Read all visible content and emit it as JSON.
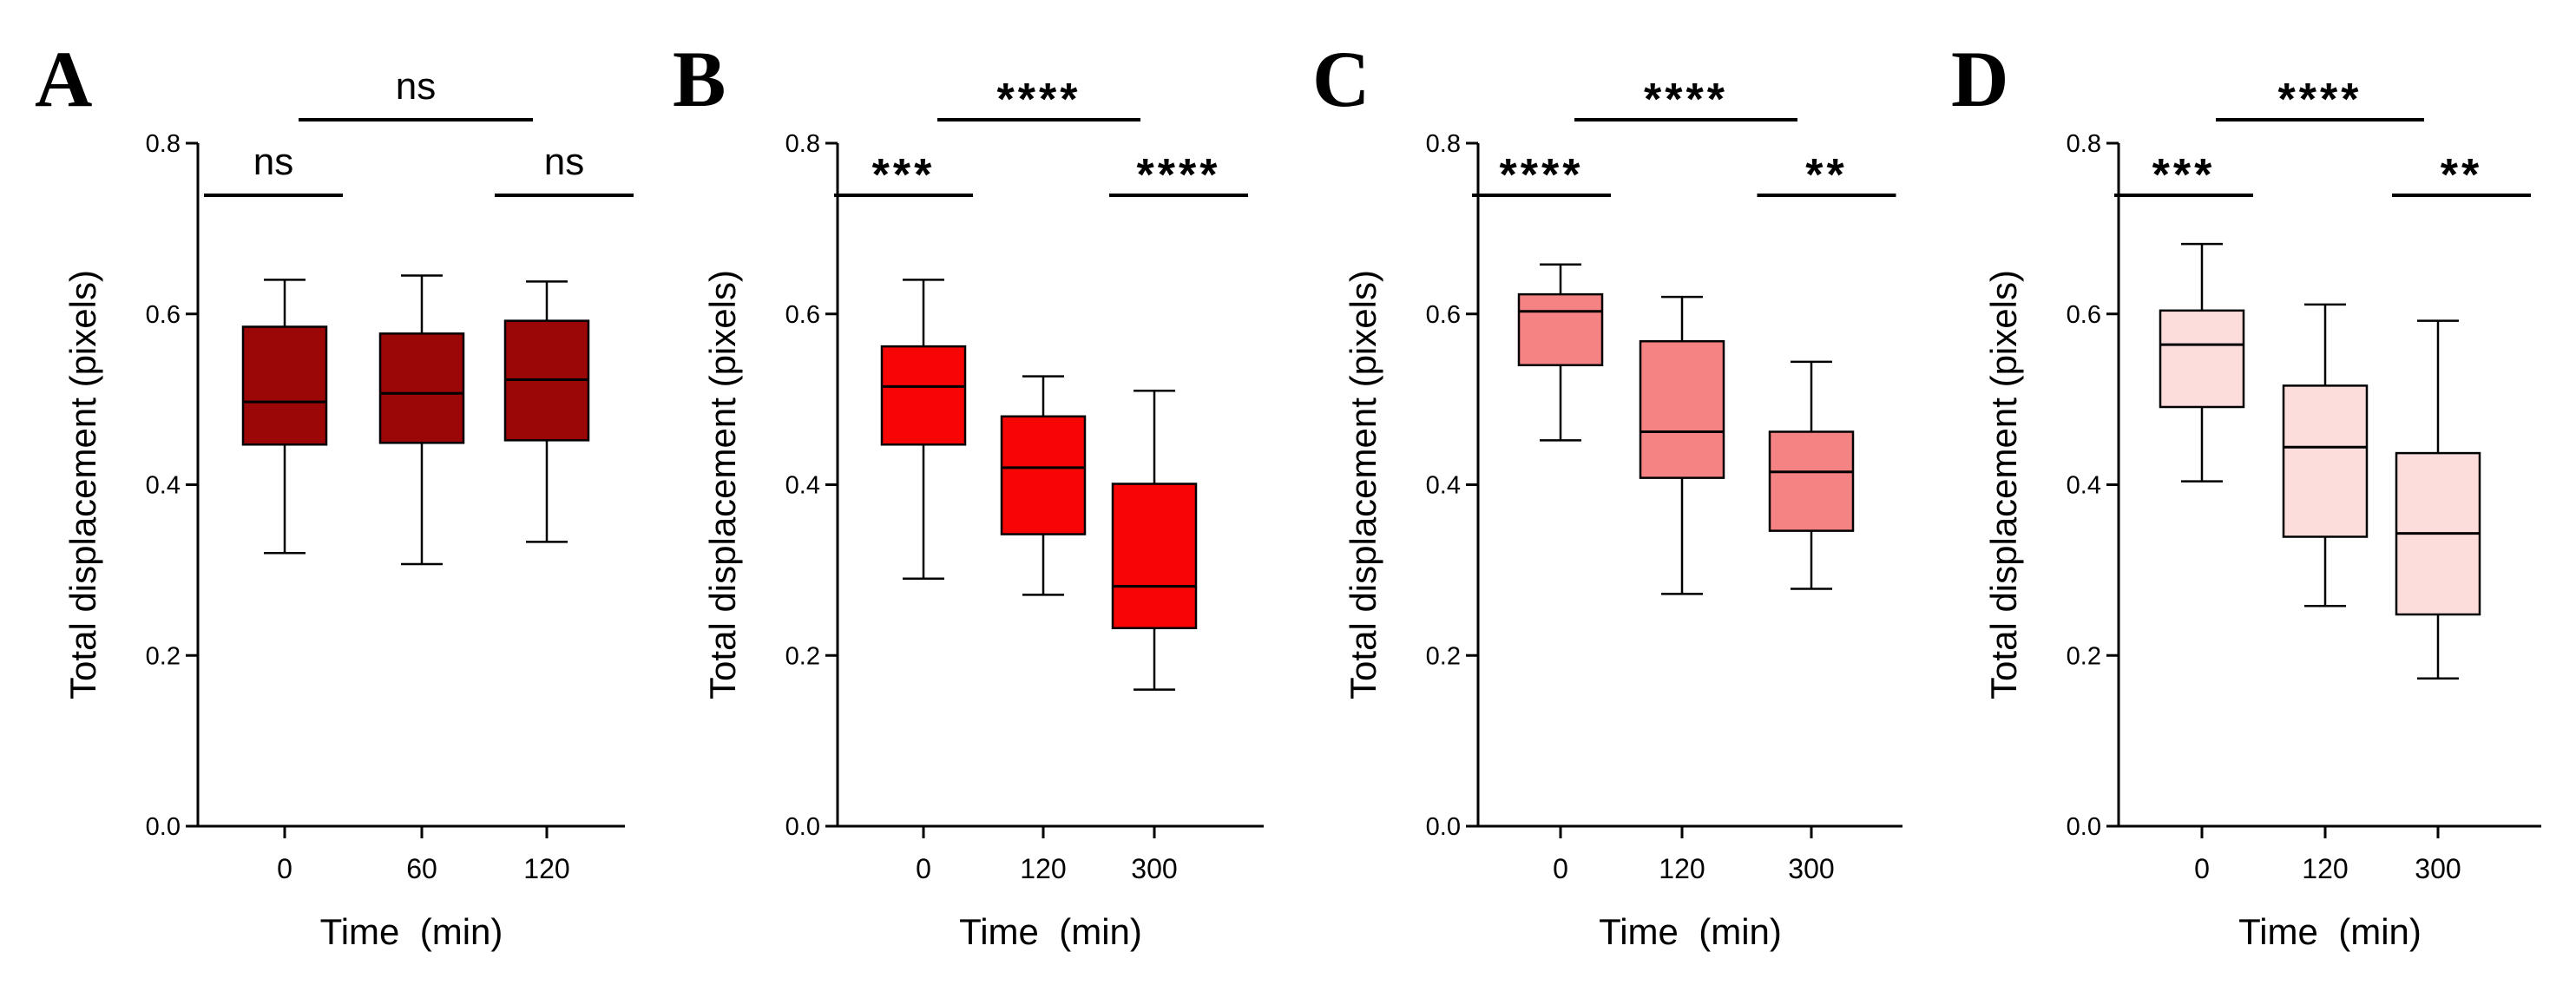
{
  "figure": {
    "colors": {
      "axis": "#000000",
      "background": "#ffffff"
    }
  },
  "chart_data": [
    {
      "panel": "A",
      "type": "box",
      "ylabel": "Total displacement (pixels)",
      "xlabel": "Time  (min)",
      "ylim": [
        0.0,
        0.8
      ],
      "yticks": [
        "0.0",
        "0.2",
        "0.4",
        "0.6",
        "0.8"
      ],
      "categories": [
        "0",
        "60",
        "120"
      ],
      "box_color": "#9b0606",
      "boxes": [
        {
          "min": 0.32,
          "q1": 0.447,
          "median": 0.497,
          "q3": 0.585,
          "max": 0.64
        },
        {
          "min": 0.307,
          "q1": 0.449,
          "median": 0.507,
          "q3": 0.577,
          "max": 0.645
        },
        {
          "min": 0.333,
          "q1": 0.452,
          "median": 0.523,
          "q3": 0.592,
          "max": 0.638
        }
      ],
      "significance": [
        {
          "from": 0,
          "to": 2,
          "label": "ns"
        },
        {
          "from": 0,
          "to": 1,
          "label": "ns"
        },
        {
          "from": 1,
          "to": 2,
          "label": "ns"
        }
      ]
    },
    {
      "panel": "B",
      "type": "box",
      "ylabel": "Total displacement (pixels)",
      "xlabel": "Time  (min)",
      "ylim": [
        0.0,
        0.8
      ],
      "yticks": [
        "0.0",
        "0.2",
        "0.4",
        "0.6",
        "0.8"
      ],
      "categories": [
        "0",
        "120",
        "300"
      ],
      "box_color": "#f70505",
      "boxes": [
        {
          "min": 0.29,
          "q1": 0.447,
          "median": 0.515,
          "q3": 0.562,
          "max": 0.64
        },
        {
          "min": 0.271,
          "q1": 0.342,
          "median": 0.42,
          "q3": 0.48,
          "max": 0.527
        },
        {
          "min": 0.16,
          "q1": 0.232,
          "median": 0.281,
          "q3": 0.401,
          "max": 0.51
        }
      ],
      "significance": [
        {
          "from": 0,
          "to": 2,
          "label": "****"
        },
        {
          "from": 0,
          "to": 1,
          "label": "***"
        },
        {
          "from": 1,
          "to": 2,
          "label": "****"
        }
      ]
    },
    {
      "panel": "C",
      "type": "box",
      "ylabel": "Total displacement (pixels)",
      "xlabel": "Time  (min)",
      "ylim": [
        0.0,
        0.8
      ],
      "yticks": [
        "0.0",
        "0.2",
        "0.4",
        "0.6",
        "0.8"
      ],
      "categories": [
        "0",
        "120",
        "300"
      ],
      "box_color": "#f58383",
      "boxes": [
        {
          "min": 0.452,
          "q1": 0.54,
          "median": 0.603,
          "q3": 0.623,
          "max": 0.658
        },
        {
          "min": 0.272,
          "q1": 0.408,
          "median": 0.462,
          "q3": 0.568,
          "max": 0.62
        },
        {
          "min": 0.278,
          "q1": 0.346,
          "median": 0.415,
          "q3": 0.462,
          "max": 0.544
        }
      ],
      "significance": [
        {
          "from": 0,
          "to": 2,
          "label": "****"
        },
        {
          "from": 0,
          "to": 1,
          "label": "****"
        },
        {
          "from": 1,
          "to": 2,
          "label": "**"
        }
      ]
    },
    {
      "panel": "D",
      "type": "box",
      "ylabel": "Total displacement (pixels)",
      "xlabel": "Time  (min)",
      "ylim": [
        0.0,
        0.8
      ],
      "yticks": [
        "0.0",
        "0.2",
        "0.4",
        "0.6",
        "0.8"
      ],
      "categories": [
        "0",
        "120",
        "300"
      ],
      "box_color": "#fddcdc",
      "boxes": [
        {
          "min": 0.404,
          "q1": 0.491,
          "median": 0.564,
          "q3": 0.604,
          "max": 0.682
        },
        {
          "min": 0.258,
          "q1": 0.339,
          "median": 0.444,
          "q3": 0.516,
          "max": 0.611
        },
        {
          "min": 0.173,
          "q1": 0.248,
          "median": 0.343,
          "q3": 0.437,
          "max": 0.592
        }
      ],
      "significance": [
        {
          "from": 0,
          "to": 2,
          "label": "****"
        },
        {
          "from": 0,
          "to": 1,
          "label": "***"
        },
        {
          "from": 1,
          "to": 2,
          "label": "**"
        }
      ]
    }
  ]
}
